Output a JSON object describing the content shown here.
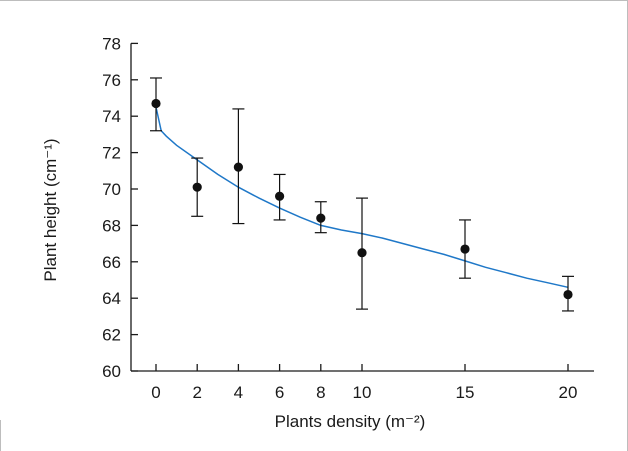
{
  "chart_data": {
    "type": "scatter",
    "xlabel": "Plants density (m⁻²)",
    "ylabel": "Plant height (cm⁻¹)",
    "x_ticks": [
      0,
      2,
      4,
      6,
      8,
      10,
      15,
      20
    ],
    "y_ticks": [
      60,
      62,
      64,
      66,
      68,
      70,
      72,
      74,
      76,
      78
    ],
    "ylim": [
      60,
      78
    ],
    "grid": false,
    "points": [
      {
        "x": 0,
        "y": 74.7,
        "err_low": 73.2,
        "err_high": 76.1
      },
      {
        "x": 2,
        "y": 70.1,
        "err_low": 68.5,
        "err_high": 71.7
      },
      {
        "x": 4,
        "y": 71.2,
        "err_low": 68.1,
        "err_high": 74.4
      },
      {
        "x": 6,
        "y": 69.6,
        "err_low": 68.3,
        "err_high": 70.8
      },
      {
        "x": 8,
        "y": 68.4,
        "err_low": 67.6,
        "err_high": 69.3
      },
      {
        "x": 10,
        "y": 66.5,
        "err_low": 63.4,
        "err_high": 69.5
      },
      {
        "x": 15,
        "y": 66.7,
        "err_low": 65.1,
        "err_high": 68.3
      },
      {
        "x": 20,
        "y": 64.2,
        "err_low": 63.3,
        "err_high": 65.2
      }
    ],
    "fit_curve": {
      "color": "#1f78c8",
      "x": [
        0,
        0.25,
        0.5,
        1,
        2,
        3,
        4,
        5,
        6,
        7,
        8,
        9,
        10,
        11,
        12,
        13,
        14,
        15,
        16,
        17,
        18,
        19,
        20
      ],
      "y": [
        74.5,
        73.2,
        72.9,
        72.4,
        71.6,
        70.8,
        70.1,
        69.5,
        68.95,
        68.45,
        68.0,
        67.75,
        67.55,
        67.3,
        67.0,
        66.7,
        66.4,
        66.05,
        65.7,
        65.4,
        65.1,
        64.85,
        64.6
      ]
    },
    "point_color": "#111111",
    "axis_color": "#1a1a1a"
  }
}
